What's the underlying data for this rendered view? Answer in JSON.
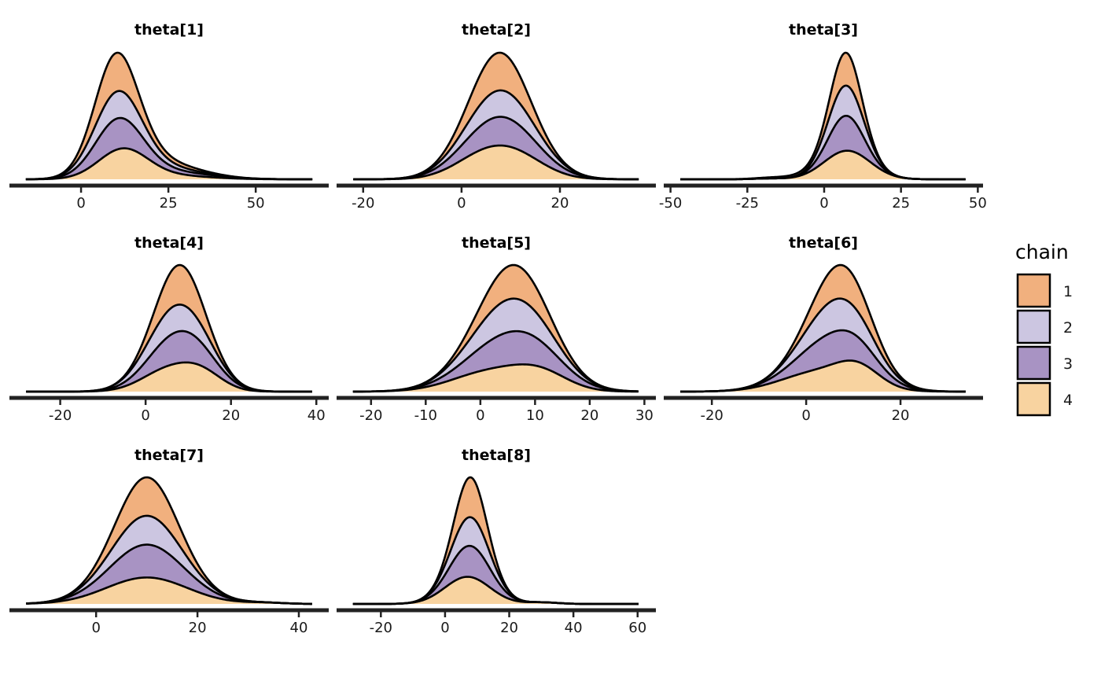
{
  "legend": {
    "title": "chain",
    "items": [
      {
        "label": "1",
        "color": "#F1B07E"
      },
      {
        "label": "2",
        "color": "#CCC6E1"
      },
      {
        "label": "3",
        "color": "#A893C3"
      },
      {
        "label": "4",
        "color": "#F8D3A0"
      }
    ]
  },
  "chart_data": [
    {
      "type": "area",
      "stacked": true,
      "title": "theta[1]",
      "xlabel": "",
      "ylabel": "",
      "xlim": [
        -20.5,
        70.9
      ],
      "ticks": [
        0,
        25,
        50
      ],
      "tick_labels": [
        "0",
        "25",
        "50"
      ],
      "density_range": [
        -15.8,
        66.2
      ],
      "series": [
        {
          "name": "1",
          "components": [
            [
              9.5,
              5.5,
              48
            ],
            [
              22,
              10,
              6
            ]
          ]
        },
        {
          "name": "2",
          "components": [
            [
              10,
              6.5,
              33
            ],
            [
              22,
              10,
              5
            ]
          ]
        },
        {
          "name": "3",
          "components": [
            [
              10,
              6.5,
              38
            ],
            [
              24,
              12,
              5
            ]
          ]
        },
        {
          "name": "4",
          "components": [
            [
              12,
              7,
              38
            ],
            [
              25,
              11,
              5
            ]
          ]
        }
      ]
    },
    {
      "type": "area",
      "stacked": true,
      "title": "theta[2]",
      "xlabel": "",
      "ylabel": "",
      "xlim": [
        -25.4,
        39.5
      ],
      "ticks": [
        -20,
        0,
        20
      ],
      "tick_labels": [
        "-20",
        "0",
        "20"
      ],
      "density_range": [
        -22,
        36
      ],
      "series": [
        {
          "name": "1",
          "components": [
            [
              7.5,
              5.5,
              50
            ]
          ]
        },
        {
          "name": "2",
          "components": [
            [
              8,
              6.5,
              35
            ]
          ]
        },
        {
          "name": "3",
          "components": [
            [
              8,
              7,
              38
            ]
          ]
        },
        {
          "name": "4",
          "components": [
            [
              4,
              6,
              25
            ],
            [
              11,
              6,
              28
            ]
          ]
        }
      ]
    },
    {
      "type": "area",
      "stacked": true,
      "title": "theta[3]",
      "xlabel": "",
      "ylabel": "",
      "xlim": [
        -52.2,
        51.7
      ],
      "ticks": [
        -50,
        -25,
        0,
        25,
        50
      ],
      "tick_labels": [
        "-50",
        "-25",
        "0",
        "25",
        "50"
      ],
      "density_range": [
        -46.8,
        46
      ],
      "series": [
        {
          "name": "1",
          "components": [
            [
              7,
              4.5,
              40
            ],
            [
              -5,
              10,
              3
            ]
          ]
        },
        {
          "name": "2",
          "components": [
            [
              7,
              5.5,
              38
            ]
          ]
        },
        {
          "name": "3",
          "components": [
            [
              7,
              5.5,
              44
            ]
          ]
        },
        {
          "name": "4",
          "components": [
            [
              7.5,
              7.5,
              36
            ],
            [
              -18,
              5,
              1
            ]
          ]
        }
      ]
    },
    {
      "type": "area",
      "stacked": true,
      "title": "theta[4]",
      "xlabel": "",
      "ylabel": "",
      "xlim": [
        -31.9,
        42.9
      ],
      "ticks": [
        -20,
        0,
        20,
        40
      ],
      "tick_labels": [
        "-20",
        "0",
        "20",
        "40"
      ],
      "density_range": [
        -28,
        39
      ],
      "series": [
        {
          "name": "1",
          "components": [
            [
              8,
              5,
              50
            ]
          ]
        },
        {
          "name": "2",
          "components": [
            [
              7,
              6.5,
              34
            ]
          ]
        },
        {
          "name": "3",
          "components": [
            [
              8,
              6.5,
              40
            ]
          ]
        },
        {
          "name": "4",
          "components": [
            [
              5,
              6,
              26
            ],
            [
              13,
              5,
              22
            ]
          ]
        }
      ]
    },
    {
      "type": "area",
      "stacked": true,
      "title": "theta[5]",
      "xlabel": "",
      "ylabel": "",
      "xlim": [
        -26.3,
        32.1
      ],
      "ticks": [
        -20,
        -10,
        0,
        10,
        20,
        30
      ],
      "tick_labels": [
        "-20",
        "-10",
        "0",
        "10",
        "20",
        "30"
      ],
      "density_range": [
        -23.3,
        28.9
      ],
      "series": [
        {
          "name": "1",
          "components": [
            [
              6,
              5.5,
              42
            ]
          ]
        },
        {
          "name": "2",
          "components": [
            [
              5.5,
              6.5,
              41
            ]
          ]
        },
        {
          "name": "3",
          "components": [
            [
              6,
              7,
              42
            ]
          ]
        },
        {
          "name": "4",
          "components": [
            [
              2,
              7,
              25
            ],
            [
              11,
              5,
              20
            ]
          ]
        }
      ]
    },
    {
      "type": "area",
      "stacked": true,
      "title": "theta[6]",
      "xlabel": "",
      "ylabel": "",
      "xlim": [
        -30.2,
        37.5
      ],
      "ticks": [
        -20,
        0,
        20
      ],
      "tick_labels": [
        "-20",
        "0",
        "20"
      ],
      "density_range": [
        -26.7,
        33.8
      ],
      "series": [
        {
          "name": "1",
          "components": [
            [
              7.5,
              5.5,
              42
            ]
          ]
        },
        {
          "name": "2",
          "components": [
            [
              6.5,
              6.5,
              40
            ]
          ]
        },
        {
          "name": "3",
          "components": [
            [
              6,
              7,
              40
            ]
          ]
        },
        {
          "name": "4",
          "components": [
            [
              3,
              8,
              25
            ],
            [
              11,
              4.5,
              22
            ]
          ]
        }
      ]
    },
    {
      "type": "area",
      "stacked": true,
      "title": "theta[7]",
      "xlabel": "",
      "ylabel": "",
      "xlim": [
        -17.1,
        45.9
      ],
      "ticks": [
        0,
        20,
        40
      ],
      "tick_labels": [
        "0",
        "20",
        "40"
      ],
      "density_range": [
        -13.8,
        42.6
      ],
      "series": [
        {
          "name": "1",
          "components": [
            [
              10,
              5.5,
              48
            ]
          ]
        },
        {
          "name": "2",
          "components": [
            [
              10,
              6.5,
              36
            ]
          ]
        },
        {
          "name": "3",
          "components": [
            [
              10,
              7,
              41
            ]
          ]
        },
        {
          "name": "4",
          "components": [
            [
              10,
              8,
              33
            ],
            [
              33,
              4,
              1.5
            ]
          ]
        }
      ]
    },
    {
      "type": "area",
      "stacked": true,
      "title": "theta[8]",
      "xlabel": "",
      "ylabel": "",
      "xlim": [
        -33.8,
        65.7
      ],
      "ticks": [
        -20,
        0,
        20,
        40,
        60
      ],
      "tick_labels": [
        "-20",
        "0",
        "20",
        "40",
        "60"
      ],
      "density_range": [
        -28.7,
        60.3
      ],
      "series": [
        {
          "name": "1",
          "components": [
            [
              8,
              4.5,
              50
            ]
          ]
        },
        {
          "name": "2",
          "components": [
            [
              8,
              5.5,
              36
            ]
          ]
        },
        {
          "name": "3",
          "components": [
            [
              8,
              6,
              39
            ]
          ]
        },
        {
          "name": "4",
          "components": [
            [
              7,
              7,
              34
            ],
            [
              30,
              5,
              2
            ]
          ]
        }
      ]
    }
  ]
}
